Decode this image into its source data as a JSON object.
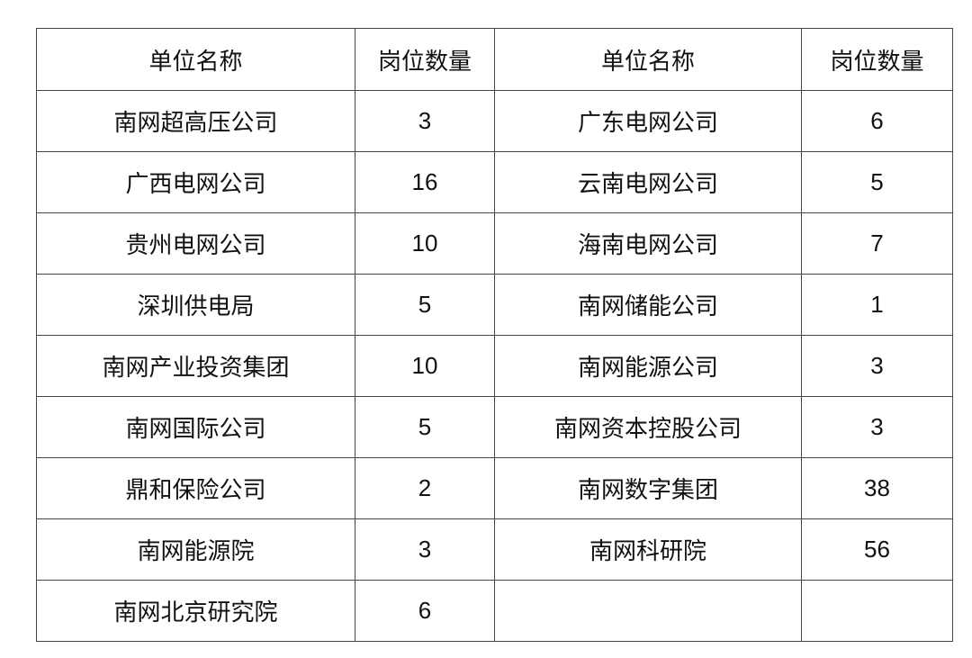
{
  "table": {
    "headers": [
      "单位名称",
      "岗位数量",
      "单位名称",
      "岗位数量"
    ],
    "rows": [
      [
        "南网超高压公司",
        "3",
        "广东电网公司",
        "6"
      ],
      [
        "广西电网公司",
        "16",
        "云南电网公司",
        "5"
      ],
      [
        "贵州电网公司",
        "10",
        "海南电网公司",
        "7"
      ],
      [
        "深圳供电局",
        "5",
        "南网储能公司",
        "1"
      ],
      [
        "南网产业投资集团",
        "10",
        "南网能源公司",
        "3"
      ],
      [
        "南网国际公司",
        "5",
        "南网资本控股公司",
        "3"
      ],
      [
        "鼎和保险公司",
        "2",
        "南网数字集团",
        "38"
      ],
      [
        "南网能源院",
        "3",
        "南网科研院",
        "56"
      ],
      [
        "南网北京研究院",
        "6",
        "",
        ""
      ]
    ]
  }
}
